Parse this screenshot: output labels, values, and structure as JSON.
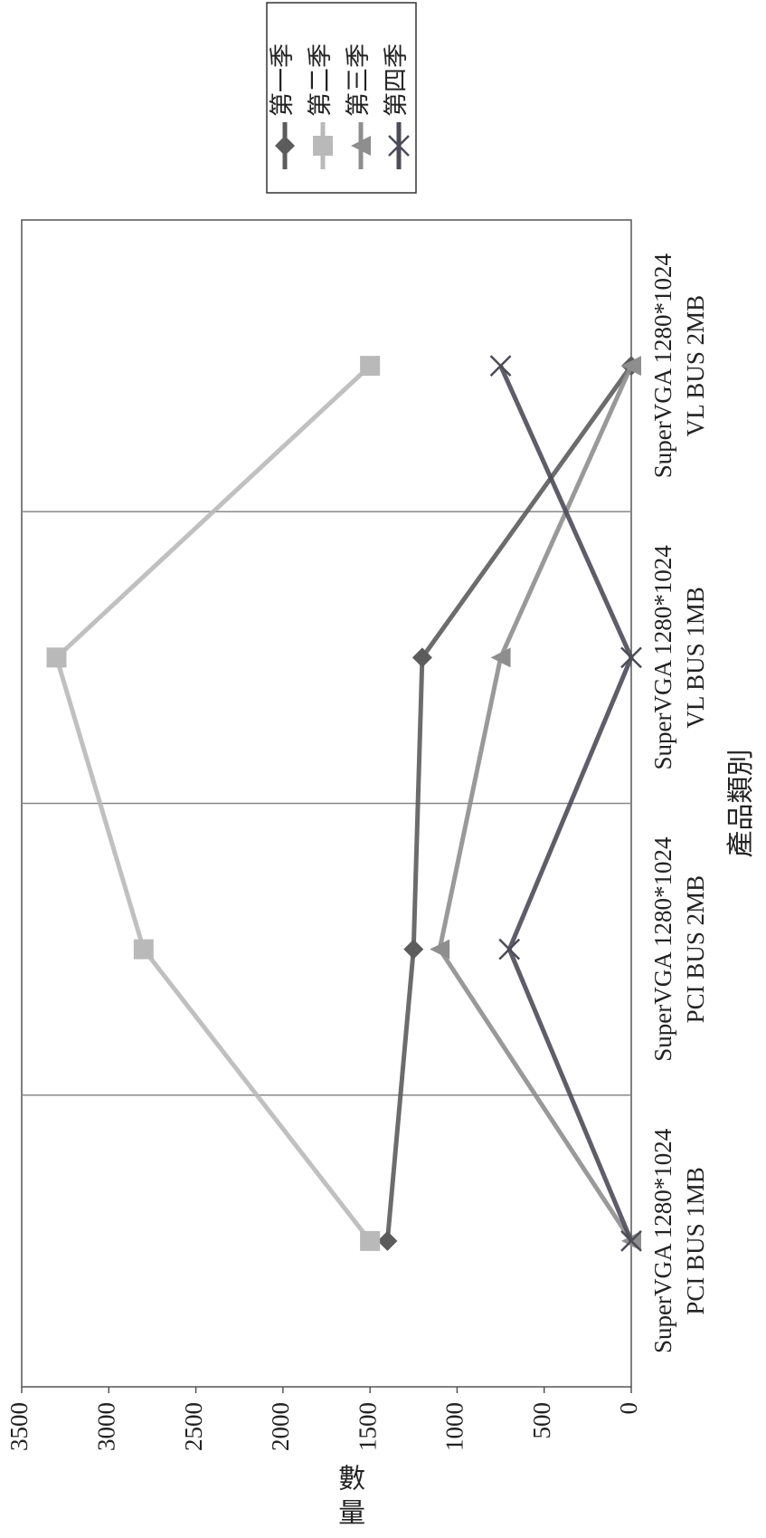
{
  "chart_data": {
    "type": "line",
    "categories": [
      [
        "SuperVGA 1280*1024",
        "PCI BUS 1MB"
      ],
      [
        "SuperVGA 1280*1024",
        "PCI BUS 2MB"
      ],
      [
        "SuperVGA 1280*1024",
        "VL BUS 1MB"
      ],
      [
        "SuperVGA 1280*1024",
        "VL BUS 2MB"
      ]
    ],
    "series": [
      {
        "name": "第一季",
        "color": "#5c5c5c",
        "marker": "diamond",
        "values": [
          1400,
          1250,
          1200,
          0
        ]
      },
      {
        "name": "第二季",
        "color": "#b9b9b9",
        "marker": "square",
        "values": [
          1500,
          2800,
          3300,
          1500
        ]
      },
      {
        "name": "第三季",
        "color": "#8e8e8e",
        "marker": "triangle",
        "values": [
          0,
          1100,
          750,
          0
        ]
      },
      {
        "name": "第四季",
        "color": "#4c4c58",
        "marker": "x",
        "values": [
          0,
          700,
          0,
          750
        ]
      }
    ],
    "xlabel": "產品類別",
    "ylabel": "數量",
    "ylim": [
      0,
      3500
    ],
    "yticks": [
      0,
      500,
      1000,
      1500,
      2000,
      2500,
      3000,
      3500
    ],
    "grid": true,
    "legend": "top-right"
  }
}
